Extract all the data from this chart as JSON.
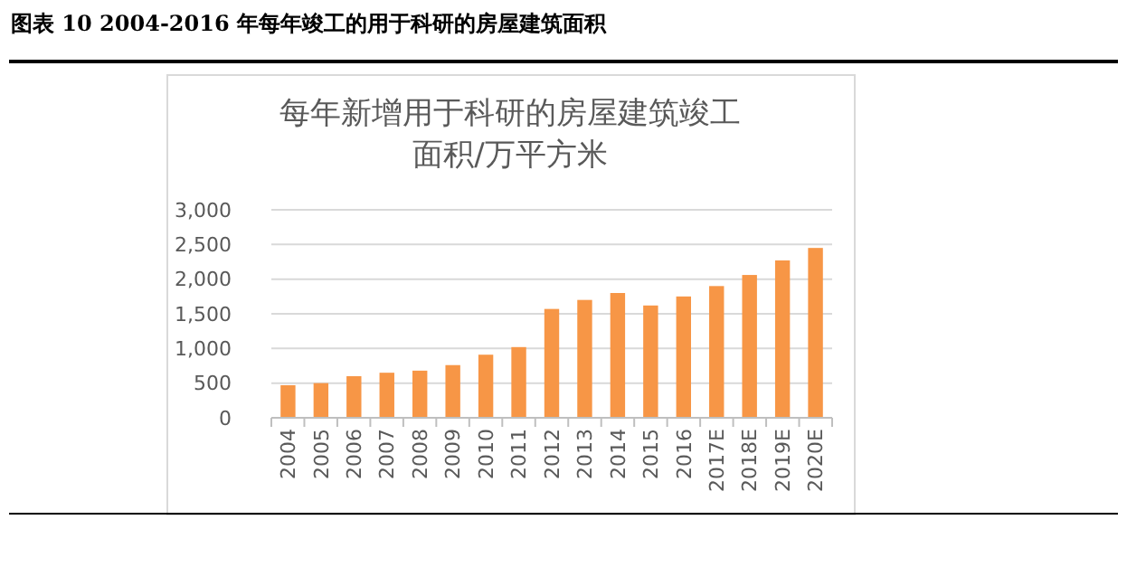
{
  "chart_data": {
    "type": "bar",
    "title": "图表 10 2004-2016 年每年竣工的用于科研的房屋建筑面积",
    "subtitle": "每年新增用于科研的房屋建筑竣工面积/万平方米",
    "categories": [
      "2004",
      "2005",
      "2006",
      "2007",
      "2008",
      "2009",
      "2010",
      "2011",
      "2012",
      "2013",
      "2014",
      "2015",
      "2016",
      "2017E",
      "2018E",
      "2019E",
      "2020E"
    ],
    "values": [
      470,
      500,
      600,
      650,
      680,
      760,
      910,
      1020,
      1570,
      1700,
      1800,
      1620,
      1750,
      1900,
      2060,
      2270,
      2450
    ],
    "color": "#f79646",
    "ylim": [
      0,
      3000
    ],
    "yticks": [
      {
        "value": 0,
        "label": "0"
      },
      {
        "value": 500,
        "label": "500"
      },
      {
        "value": 1000,
        "label": "1,000"
      },
      {
        "value": 1500,
        "label": "1,500"
      },
      {
        "value": 2000,
        "label": "2,000"
      },
      {
        "value": 2500,
        "label": "2,500"
      },
      {
        "value": 3000,
        "label": "3,000"
      }
    ],
    "grid": "y"
  }
}
